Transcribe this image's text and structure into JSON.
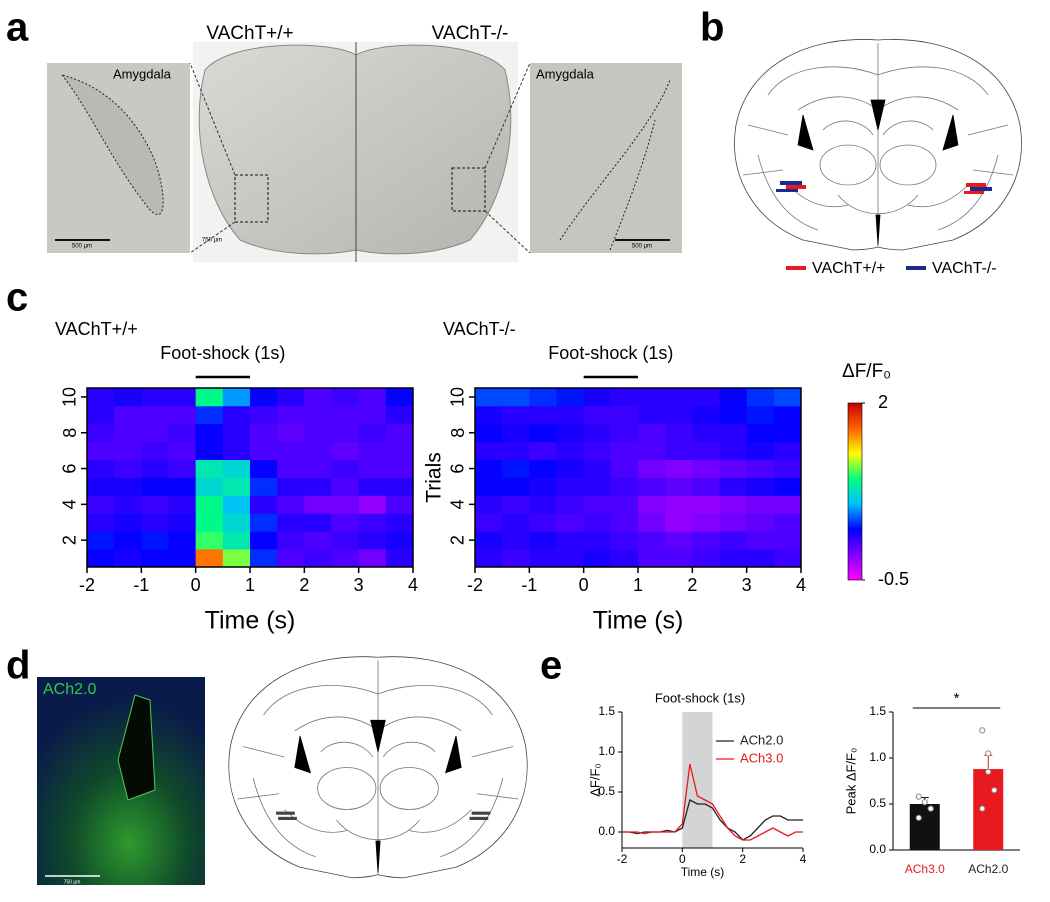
{
  "panel_labels": [
    "a",
    "b",
    "c",
    "d",
    "e"
  ],
  "panel_a": {
    "left_title": "VAChT+/+",
    "right_title": "VAChT-/-",
    "inset_labels": [
      "Amygdala",
      "Amygdala"
    ],
    "scale_bars": [
      "500 µm",
      "750 µm",
      "500 µm"
    ]
  },
  "panel_b": {
    "legend": [
      {
        "name": "VAChT+/+",
        "color": "#e8191f"
      },
      {
        "name": "VAChT-/-",
        "color": "#1c2a8f"
      }
    ]
  },
  "panel_d": {
    "image_label": "ACh2.0",
    "scale_bar": "750 µm"
  },
  "chart_data": [
    {
      "type": "heatmap",
      "title": "VAChT+/+",
      "annotation": "Foot-shock (1s)",
      "annotation_span": [
        0,
        1
      ],
      "xbins": [
        -2,
        -1.5,
        -1,
        -0.5,
        0,
        0.5,
        1,
        1.5,
        2,
        2.5,
        3,
        3.5,
        4
      ],
      "xlim": [
        -2,
        4
      ],
      "xticks": [
        -2,
        -1,
        0,
        1,
        2,
        3,
        4
      ],
      "xlabel": "Time (s)",
      "y": [
        1,
        2,
        3,
        4,
        5,
        6,
        7,
        8,
        9,
        10
      ],
      "ylim": [
        0.5,
        10.5
      ],
      "yticks": [
        2,
        4,
        6,
        8,
        10
      ],
      "clim": [
        -0.5,
        2
      ],
      "colormap": [
        "#ff00ff",
        "#8000ff",
        "#0000ff",
        "#00bfff",
        "#00ff80",
        "#ffff00",
        "#ff6000",
        "#c80000"
      ],
      "values": [
        [
          0.2,
          0.15,
          0.2,
          0.2,
          1.6,
          1.1,
          0.3,
          0.0,
          0.05,
          0.0,
          -0.1,
          0.1
        ],
        [
          0.25,
          0.2,
          0.25,
          0.2,
          1.0,
          0.8,
          0.2,
          0.05,
          0.0,
          0.05,
          0.1,
          0.15
        ],
        [
          0.1,
          0.15,
          0.1,
          0.15,
          0.9,
          0.7,
          0.3,
          0.1,
          0.1,
          0.0,
          0.05,
          0.1
        ],
        [
          0.05,
          0.1,
          0.05,
          0.1,
          0.9,
          0.6,
          0.1,
          0.0,
          -0.1,
          -0.1,
          -0.2,
          0.0
        ],
        [
          0.15,
          0.15,
          0.2,
          0.2,
          0.7,
          0.8,
          0.3,
          0.1,
          0.1,
          0.0,
          0.1,
          0.1
        ],
        [
          0.1,
          0.05,
          0.1,
          0.05,
          0.8,
          0.7,
          0.2,
          0.0,
          0.0,
          0.05,
          0.0,
          0.0
        ],
        [
          0.0,
          0.0,
          0.05,
          0.0,
          0.2,
          0.1,
          0.0,
          0.0,
          0.0,
          -0.05,
          0.0,
          0.0
        ],
        [
          0.05,
          0.0,
          0.0,
          0.05,
          0.2,
          0.1,
          0.0,
          -0.05,
          0.0,
          0.0,
          0.05,
          0.0
        ],
        [
          0.1,
          0.0,
          0.0,
          0.0,
          0.3,
          0.1,
          0.05,
          0.0,
          0.0,
          0.0,
          0.0,
          0.1
        ],
        [
          0.1,
          0.15,
          0.1,
          0.1,
          0.9,
          0.5,
          0.2,
          0.1,
          0.0,
          0.05,
          0.0,
          0.2
        ]
      ]
    },
    {
      "type": "heatmap",
      "title": "VAChT-/-",
      "annotation": "Foot-shock (1s)",
      "annotation_span": [
        0,
        1
      ],
      "xbins": [
        -2,
        -1.5,
        -1,
        -0.5,
        0,
        0.5,
        1,
        1.5,
        2,
        2.5,
        3,
        3.5,
        4
      ],
      "xlim": [
        -2,
        4
      ],
      "xticks": [
        -2,
        -1,
        0,
        1,
        2,
        3,
        4
      ],
      "xlabel": "Time (s)",
      "y": [
        1,
        2,
        3,
        4,
        5,
        6,
        7,
        8,
        9,
        10
      ],
      "ylim": [
        0.5,
        10.5
      ],
      "yticks": [
        2,
        4,
        6,
        8,
        10
      ],
      "ylabel": "Trials",
      "clim": [
        -0.5,
        2
      ],
      "colormap": [
        "#ff00ff",
        "#8000ff",
        "#0000ff",
        "#00bfff",
        "#00ff80",
        "#ffff00",
        "#ff6000",
        "#c80000"
      ],
      "colorbar": {
        "label": "ΔF/F₀",
        "ticks": [
          2,
          -0.5
        ]
      },
      "values": [
        [
          0.1,
          0.05,
          0.1,
          0.1,
          0.15,
          0.1,
          0.0,
          0.0,
          0.05,
          0.1,
          0.1,
          0.05
        ],
        [
          0.15,
          0.1,
          0.15,
          0.1,
          0.1,
          0.05,
          0.0,
          -0.05,
          0.0,
          0.05,
          0.0,
          0.0
        ],
        [
          0.05,
          0.1,
          0.05,
          0.0,
          0.05,
          0.0,
          -0.1,
          -0.2,
          -0.15,
          -0.1,
          -0.05,
          0.0
        ],
        [
          0.1,
          0.05,
          0.1,
          0.05,
          0.0,
          0.0,
          -0.15,
          -0.2,
          -0.2,
          -0.15,
          -0.1,
          -0.1
        ],
        [
          0.2,
          0.2,
          0.15,
          0.1,
          0.1,
          0.05,
          0.0,
          -0.05,
          0.0,
          0.1,
          0.15,
          0.2
        ],
        [
          0.2,
          0.25,
          0.2,
          0.15,
          0.1,
          0.0,
          -0.1,
          -0.15,
          -0.1,
          -0.05,
          0.0,
          0.05
        ],
        [
          0.1,
          0.1,
          0.05,
          0.1,
          0.05,
          0.0,
          0.0,
          0.05,
          0.05,
          0.1,
          0.15,
          0.1
        ],
        [
          0.2,
          0.15,
          0.2,
          0.15,
          0.1,
          0.05,
          0.0,
          0.05,
          0.1,
          0.1,
          0.2,
          0.2
        ],
        [
          0.15,
          0.1,
          0.1,
          0.1,
          0.05,
          0.05,
          0.1,
          0.1,
          0.15,
          0.2,
          0.25,
          0.2
        ],
        [
          0.35,
          0.35,
          0.3,
          0.25,
          0.15,
          0.1,
          0.1,
          0.1,
          0.1,
          0.2,
          0.3,
          0.35
        ]
      ]
    },
    {
      "type": "line",
      "title": "Foot-shock (1s)",
      "highlight_span": [
        0,
        1
      ],
      "xlim": [
        -2,
        4
      ],
      "xticks": [
        -2,
        0,
        2,
        4
      ],
      "xlabel": "Time (s)",
      "ylim": [
        -0.2,
        1.5
      ],
      "yticks": [
        {
          "value": 0,
          "label": "0.0"
        },
        {
          "value": 0.5,
          "label": "0.5"
        },
        {
          "value": 1,
          "label": "1.0"
        },
        {
          "value": 1.5,
          "label": "1.5"
        }
      ],
      "ylabel": "ΔF/F₀",
      "x": [
        -2,
        -1.75,
        -1.5,
        -1.25,
        -1,
        -0.75,
        -0.5,
        -0.25,
        0,
        0.25,
        0.5,
        0.75,
        1,
        1.25,
        1.5,
        1.75,
        2,
        2.25,
        2.5,
        2.75,
        3,
        3.25,
        3.5,
        3.75,
        4
      ],
      "series": [
        {
          "name": "ACh2.0",
          "color": "#222222",
          "values": [
            0.0,
            0.0,
            -0.02,
            0.0,
            0.0,
            0.0,
            0.02,
            0.0,
            0.05,
            0.4,
            0.35,
            0.35,
            0.3,
            0.15,
            0.05,
            0.0,
            -0.1,
            -0.05,
            0.05,
            0.15,
            0.2,
            0.2,
            0.15,
            0.15,
            0.15
          ]
        },
        {
          "name": "ACh3.0",
          "color": "#e8191f",
          "values": [
            0.0,
            0.0,
            0.0,
            -0.02,
            0.0,
            0.0,
            0.0,
            0.0,
            0.1,
            0.85,
            0.45,
            0.4,
            0.35,
            0.2,
            0.05,
            -0.05,
            -0.1,
            -0.1,
            -0.05,
            0.0,
            0.05,
            0.0,
            -0.05,
            0.0,
            0.0
          ]
        }
      ]
    },
    {
      "type": "bar",
      "categories": [
        "ACh3.0",
        "ACh2.0"
      ],
      "label_colors": [
        "#e8191f",
        "#222222"
      ],
      "values": [
        0.5,
        0.88
      ],
      "errors": [
        0.07,
        0.15
      ],
      "colors": [
        "#111111",
        "#e8191f"
      ],
      "points": [
        [
          0.58,
          0.52,
          0.45,
          0.35
        ],
        [
          1.3,
          1.05,
          0.65,
          0.45,
          0.85
        ]
      ],
      "ylim": [
        0,
        1.5
      ],
      "yticks": [
        {
          "value": 0,
          "label": "0.0"
        },
        {
          "value": 0.5,
          "label": "0.5"
        },
        {
          "value": 1,
          "label": "1.0"
        },
        {
          "value": 1.5,
          "label": "1.5"
        }
      ],
      "ylabel": "Peak ΔF/F₀",
      "significance": "*"
    }
  ]
}
